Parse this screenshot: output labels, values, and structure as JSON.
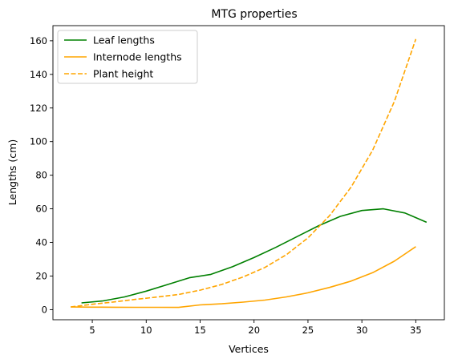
{
  "chart_data": {
    "type": "line",
    "title": "MTG properties",
    "xlabel": "Vertices",
    "ylabel": "Lengths (cm)",
    "xlim": [
      1.35,
      37.65
    ],
    "ylim": [
      -6,
      169
    ],
    "xticks": [
      5,
      10,
      15,
      20,
      25,
      30,
      35
    ],
    "yticks": [
      0,
      20,
      40,
      60,
      80,
      100,
      120,
      140,
      160
    ],
    "legend_position": "upper-left",
    "grid": false,
    "series": [
      {
        "name": "Leaf lengths",
        "color": "#008000",
        "dash": "solid",
        "x": [
          4,
          6,
          8,
          10,
          12,
          14,
          16,
          18,
          20,
          22,
          24,
          26,
          28,
          30,
          32,
          34,
          36
        ],
        "y": [
          4,
          5.2,
          7.6,
          11,
          15,
          19,
          21,
          25.5,
          31,
          37,
          43.5,
          50,
          55.5,
          59,
          60,
          57.5,
          52
        ]
      },
      {
        "name": "Internode lengths",
        "color": "#ffa500",
        "dash": "solid",
        "x": [
          3,
          5,
          7,
          9,
          11,
          13,
          15,
          17,
          19,
          21,
          23,
          25,
          27,
          29,
          31,
          33,
          35
        ],
        "y": [
          1.6,
          1.5,
          1.45,
          1.4,
          1.4,
          1.35,
          2.8,
          3.5,
          4.5,
          5.7,
          7.6,
          10,
          13.2,
          17,
          22,
          28.8,
          37.5
        ]
      },
      {
        "name": "Plant height",
        "color": "#ffa500",
        "dash": "dashed",
        "x": [
          3,
          5,
          7,
          9,
          11,
          13,
          15,
          17,
          19,
          21,
          23,
          25,
          27,
          29,
          31,
          33,
          35
        ],
        "y": [
          1.6,
          3.2,
          4.6,
          6.1,
          7.5,
          9,
          11.6,
          15,
          19.5,
          25.1,
          32.7,
          42.7,
          55.9,
          72.9,
          94.9,
          123.7,
          161
        ]
      }
    ]
  }
}
